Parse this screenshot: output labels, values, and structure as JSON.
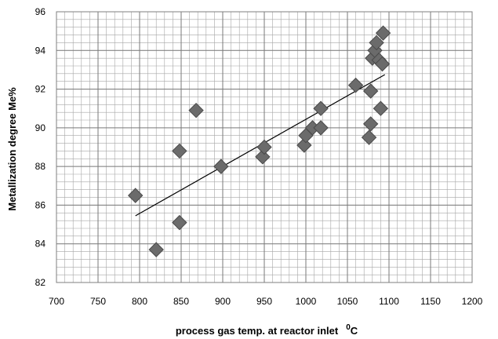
{
  "chart_data": {
    "type": "scatter",
    "title": "",
    "xlabel": "process gas temp. at reactor inlet",
    "xlabel_unit_sup": "0",
    "xlabel_unit": "C",
    "ylabel": "Metallization degree Me%",
    "xlim": [
      700,
      1200
    ],
    "ylim": [
      82,
      96
    ],
    "x_ticks": [
      700,
      750,
      800,
      850,
      900,
      950,
      1000,
      1050,
      1100,
      1150,
      1200
    ],
    "y_ticks": [
      82,
      84,
      86,
      88,
      90,
      92,
      94,
      96
    ],
    "grid": true,
    "legend": "none",
    "marker_color": "#6b6b6b",
    "trendline_color": "#000000",
    "points": [
      {
        "x": 795,
        "y": 86.5
      },
      {
        "x": 820,
        "y": 83.7
      },
      {
        "x": 848,
        "y": 85.1
      },
      {
        "x": 848,
        "y": 88.8
      },
      {
        "x": 868,
        "y": 90.9
      },
      {
        "x": 898,
        "y": 88.0
      },
      {
        "x": 948,
        "y": 88.5
      },
      {
        "x": 950,
        "y": 89.0
      },
      {
        "x": 998,
        "y": 89.1
      },
      {
        "x": 1000,
        "y": 89.6
      },
      {
        "x": 1008,
        "y": 90.0
      },
      {
        "x": 1018,
        "y": 90.0
      },
      {
        "x": 1018,
        "y": 91.0
      },
      {
        "x": 1060,
        "y": 92.2
      },
      {
        "x": 1076,
        "y": 89.5
      },
      {
        "x": 1078,
        "y": 90.2
      },
      {
        "x": 1078,
        "y": 91.9
      },
      {
        "x": 1080,
        "y": 93.6
      },
      {
        "x": 1083,
        "y": 94.0
      },
      {
        "x": 1085,
        "y": 94.4
      },
      {
        "x": 1088,
        "y": 93.5
      },
      {
        "x": 1090,
        "y": 91.0
      },
      {
        "x": 1092,
        "y": 93.3
      },
      {
        "x": 1093,
        "y": 94.9
      }
    ],
    "trendline": [
      {
        "x": 795,
        "y": 85.45
      },
      {
        "x": 1095,
        "y": 92.75
      }
    ]
  }
}
